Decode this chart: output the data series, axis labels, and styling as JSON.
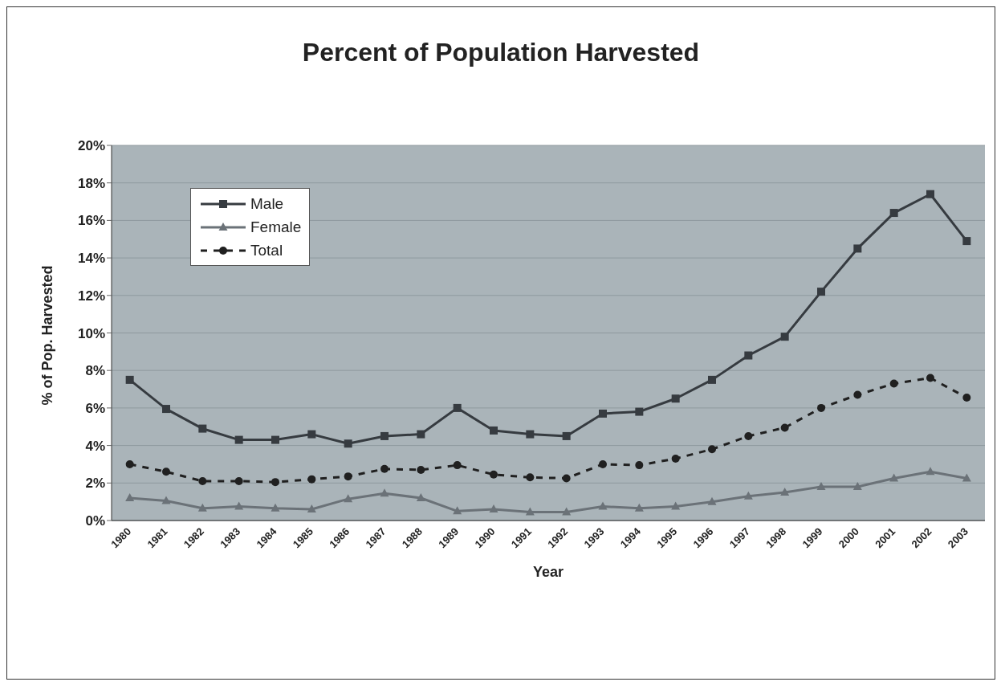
{
  "chart_data": {
    "type": "line",
    "title": "Percent of Population Harvested",
    "xlabel": "Year",
    "ylabel": "% of Pop. Harvested",
    "categories": [
      "1980",
      "1981",
      "1982",
      "1983",
      "1984",
      "1985",
      "1986",
      "1987",
      "1988",
      "1989",
      "1990",
      "1991",
      "1992",
      "1993",
      "1994",
      "1995",
      "1996",
      "1997",
      "1998",
      "1999",
      "2000",
      "2001",
      "2002",
      "2003"
    ],
    "series": [
      {
        "name": "Male",
        "color": "#363b40",
        "marker": "square",
        "line_style": "solid",
        "values": [
          7.5,
          5.95,
          4.9,
          4.3,
          4.3,
          4.6,
          4.1,
          4.5,
          4.6,
          6.0,
          4.8,
          4.6,
          4.5,
          5.7,
          5.8,
          6.5,
          7.5,
          8.8,
          9.8,
          12.2,
          14.5,
          16.4,
          17.4,
          14.9
        ]
      },
      {
        "name": "Female",
        "color": "#6b7278",
        "marker": "triangle",
        "line_style": "solid",
        "values": [
          1.2,
          1.05,
          0.65,
          0.75,
          0.65,
          0.6,
          1.15,
          1.45,
          1.2,
          0.5,
          0.6,
          0.45,
          0.45,
          0.75,
          0.65,
          0.75,
          1.0,
          1.3,
          1.5,
          1.8,
          1.8,
          2.25,
          2.6,
          2.25
        ]
      },
      {
        "name": "Total",
        "color": "#202020",
        "marker": "circle",
        "line_style": "dashed",
        "values": [
          3.0,
          2.6,
          2.1,
          2.1,
          2.05,
          2.2,
          2.35,
          2.75,
          2.7,
          2.95,
          2.45,
          2.3,
          2.25,
          3.0,
          2.95,
          3.3,
          3.8,
          4.5,
          4.95,
          6.0,
          6.7,
          7.3,
          7.6,
          6.55
        ]
      }
    ],
    "ylim": [
      0,
      20
    ],
    "yticks": [
      {
        "value": 0,
        "label": "0%"
      },
      {
        "value": 2,
        "label": "2%"
      },
      {
        "value": 4,
        "label": "4%"
      },
      {
        "value": 6,
        "label": "6%"
      },
      {
        "value": 8,
        "label": "8%"
      },
      {
        "value": 10,
        "label": "10%"
      },
      {
        "value": 12,
        "label": "12%"
      },
      {
        "value": 14,
        "label": "14%"
      },
      {
        "value": 16,
        "label": "16%"
      },
      {
        "value": 18,
        "label": "18%"
      },
      {
        "value": 20,
        "label": "20%"
      }
    ],
    "grid": "y",
    "legend": "top left"
  }
}
